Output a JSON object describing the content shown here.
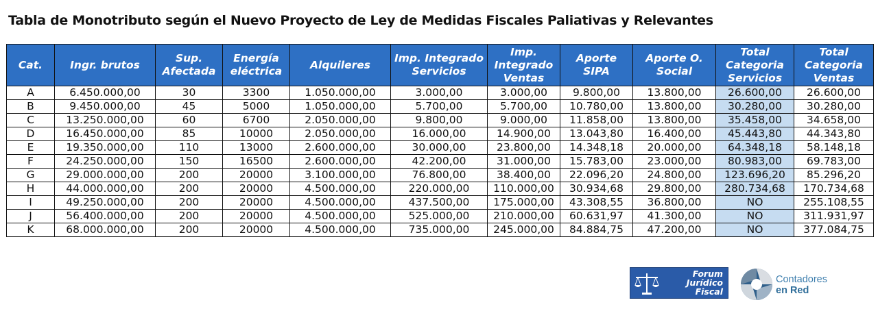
{
  "title": "Tabla de Monotributo según el Nuevo Proyecto de Ley de Medidas Fiscales Paliativas y Relevantes",
  "headers": [
    "Cat.",
    "Ingr. brutos",
    "Sup. Afectada",
    "Energía eléctrica",
    "Alquileres",
    "Imp. Integrado Servicios",
    "Imp. Integrado Ventas",
    "Aporte SIPA",
    "Aporte O. Social",
    "Total Categoria Servicios",
    "Total Categoria Ventas"
  ],
  "rows": [
    [
      "A",
      "6.450.000,00",
      "30",
      "3300",
      "1.050.000,00",
      "3.000,00",
      "3.000,00",
      "9.800,00",
      "13.800,00",
      "26.600,00",
      "26.600,00"
    ],
    [
      "B",
      "9.450.000,00",
      "45",
      "5000",
      "1.050.000,00",
      "5.700,00",
      "5.700,00",
      "10.780,00",
      "13.800,00",
      "30.280,00",
      "30.280,00"
    ],
    [
      "C",
      "13.250.000,00",
      "60",
      "6700",
      "2.050.000,00",
      "9.800,00",
      "9.000,00",
      "11.858,00",
      "13.800,00",
      "35.458,00",
      "34.658,00"
    ],
    [
      "D",
      "16.450.000,00",
      "85",
      "10000",
      "2.050.000,00",
      "16.000,00",
      "14.900,00",
      "13.043,80",
      "16.400,00",
      "45.443,80",
      "44.343,80"
    ],
    [
      "E",
      "19.350.000,00",
      "110",
      "13000",
      "2.600.000,00",
      "30.000,00",
      "23.800,00",
      "14.348,18",
      "20.000,00",
      "64.348,18",
      "58.148,18"
    ],
    [
      "F",
      "24.250.000,00",
      "150",
      "16500",
      "2.600.000,00",
      "42.200,00",
      "31.000,00",
      "15.783,00",
      "23.000,00",
      "80.983,00",
      "69.783,00"
    ],
    [
      "G",
      "29.000.000,00",
      "200",
      "20000",
      "3.100.000,00",
      "76.800,00",
      "38.400,00",
      "22.096,20",
      "24.800,00",
      "123.696,20",
      "85.296,20"
    ],
    [
      "H",
      "44.000.000,00",
      "200",
      "20000",
      "4.500.000,00",
      "220.000,00",
      "110.000,00",
      "30.934,68",
      "29.800,00",
      "280.734,68",
      "170.734,68"
    ],
    [
      "I",
      "49.250.000,00",
      "200",
      "20000",
      "4.500.000,00",
      "437.500,00",
      "175.000,00",
      "43.308,55",
      "36.800,00",
      "NO",
      "255.108,55"
    ],
    [
      "J",
      "56.400.000,00",
      "200",
      "20000",
      "4.500.000,00",
      "525.000,00",
      "210.000,00",
      "60.631,97",
      "41.300,00",
      "NO",
      "311.931,97"
    ],
    [
      "K",
      "68.000.000,00",
      "200",
      "20000",
      "4.500.000,00",
      "735.000,00",
      "245.000,00",
      "84.884,75",
      "47.200,00",
      "NO",
      "377.084,75"
    ]
  ],
  "logos": {
    "forum": [
      "Forum",
      "Jurídico",
      "Fiscal"
    ],
    "contadores": {
      "line1": "Contadores",
      "line2": "en Red"
    }
  },
  "colors": {
    "header_bg": "#2e70c4",
    "highlight_column_bg": "#c6dcf1",
    "forum_logo_bg": "#2a5ba8",
    "contadores_text": "#3f7fae"
  },
  "icons": [
    "scales-of-justice-icon",
    "camera-aperture-icon"
  ]
}
